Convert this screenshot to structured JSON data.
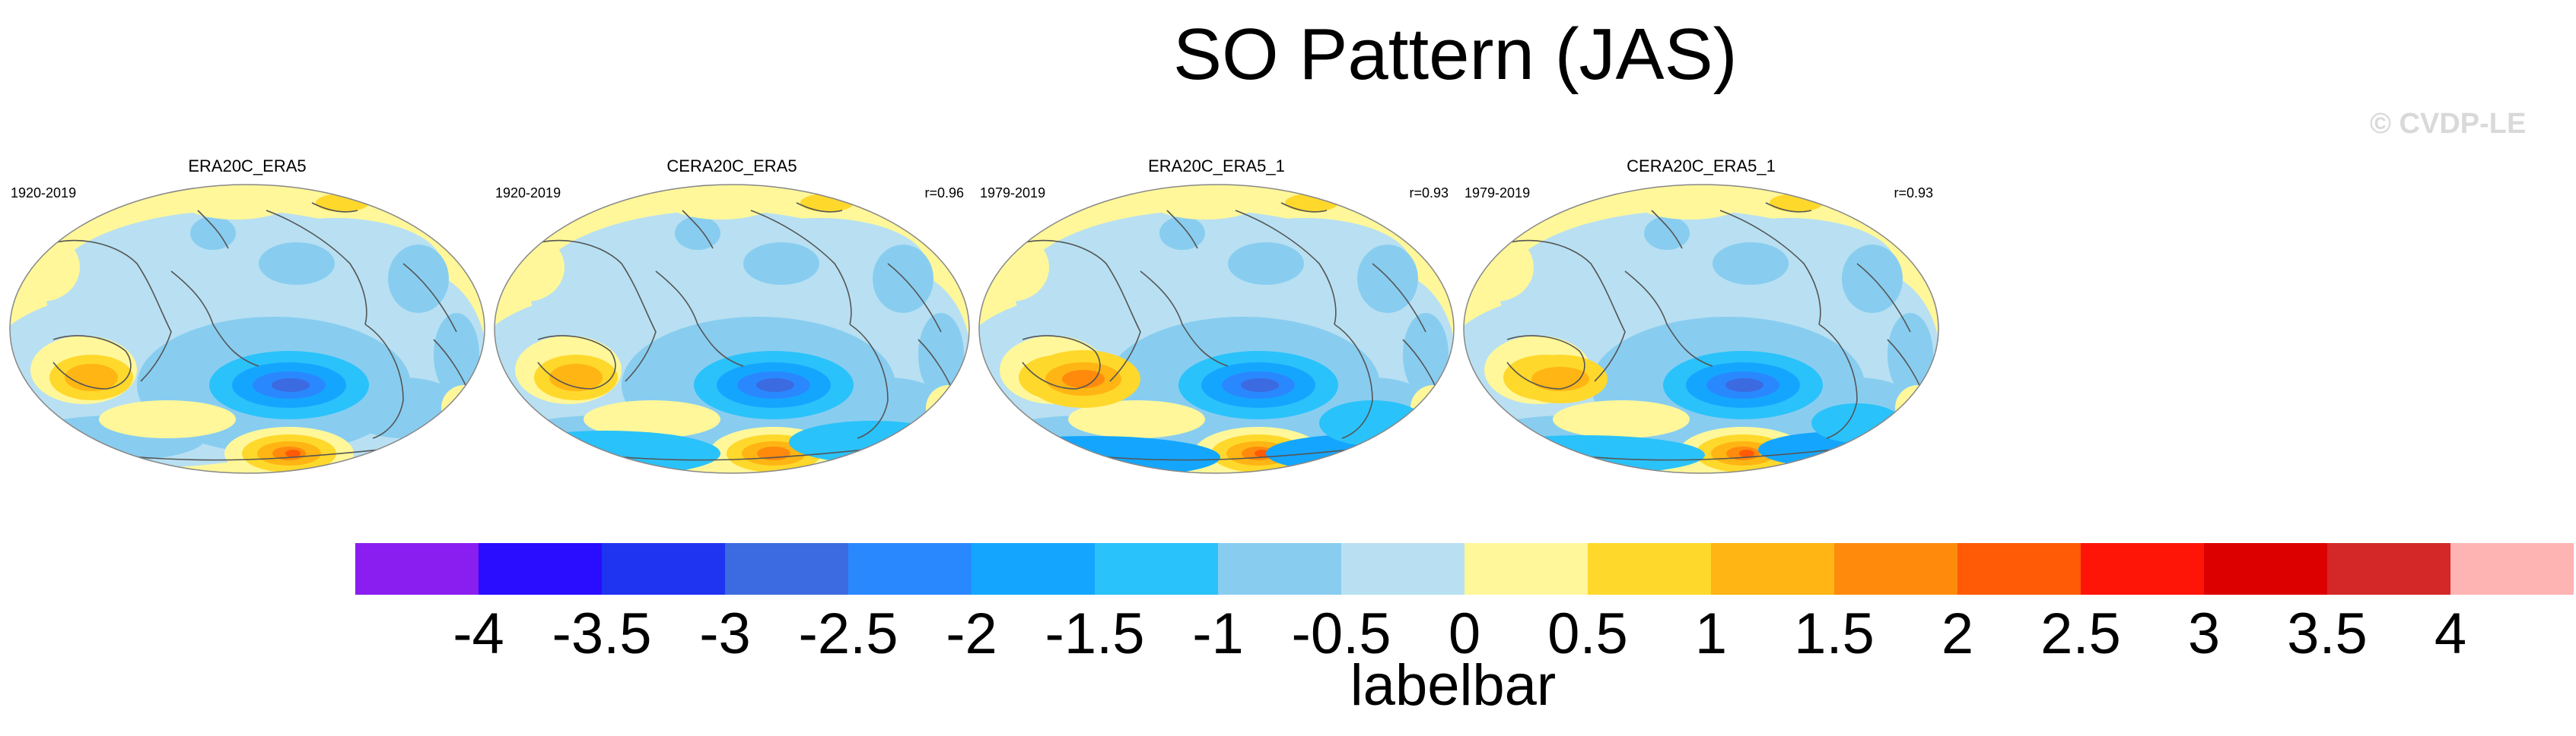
{
  "title": "SO Pattern (JAS)",
  "credit": "© CVDP-LE",
  "panels": [
    {
      "title": "ERA20C_ERA5",
      "years": "1920-2019",
      "r": ""
    },
    {
      "title": "CERA20C_ERA5",
      "years": "1920-2019",
      "r": "r=0.96"
    },
    {
      "title": "ERA20C_ERA5_1",
      "years": "1979-2019",
      "r": "r=0.93"
    },
    {
      "title": "CERA20C_ERA5_1",
      "years": "1979-2019",
      "r": "r=0.93"
    }
  ],
  "labelbar": {
    "title": "labelbar",
    "ticks": [
      "-4",
      "-3.5",
      "-3",
      "-2.5",
      "-2",
      "-1.5",
      "-1",
      "-0.5",
      "0",
      "0.5",
      "1",
      "1.5",
      "2",
      "2.5",
      "3",
      "3.5",
      "4"
    ],
    "colors": [
      "#8a1ef0",
      "#2a0cff",
      "#1e34f0",
      "#3c6ae0",
      "#2a88ff",
      "#14a6ff",
      "#2ac2fa",
      "#88cdf0",
      "#b8e0f2",
      "#fff79a",
      "#ffd82c",
      "#ffb514",
      "#ff8a0c",
      "#ff5a06",
      "#ff1408",
      "#dc0000",
      "#d42828",
      "#ffb4b4"
    ]
  },
  "chart_data": {
    "type": "map",
    "projection": "Robinson (Pacific-centered)",
    "panels": [
      "ERA20C_ERA5",
      "CERA20C_ERA5",
      "ERA20C_ERA5_1",
      "CERA20C_ERA5_1"
    ],
    "colorbar_levels": [
      -4,
      -3.5,
      -3,
      -2.5,
      -2,
      -1.5,
      -1,
      -0.5,
      0,
      0.5,
      1,
      1.5,
      2,
      2.5,
      3,
      3.5,
      4
    ],
    "colorbar_title": "labelbar"
  }
}
